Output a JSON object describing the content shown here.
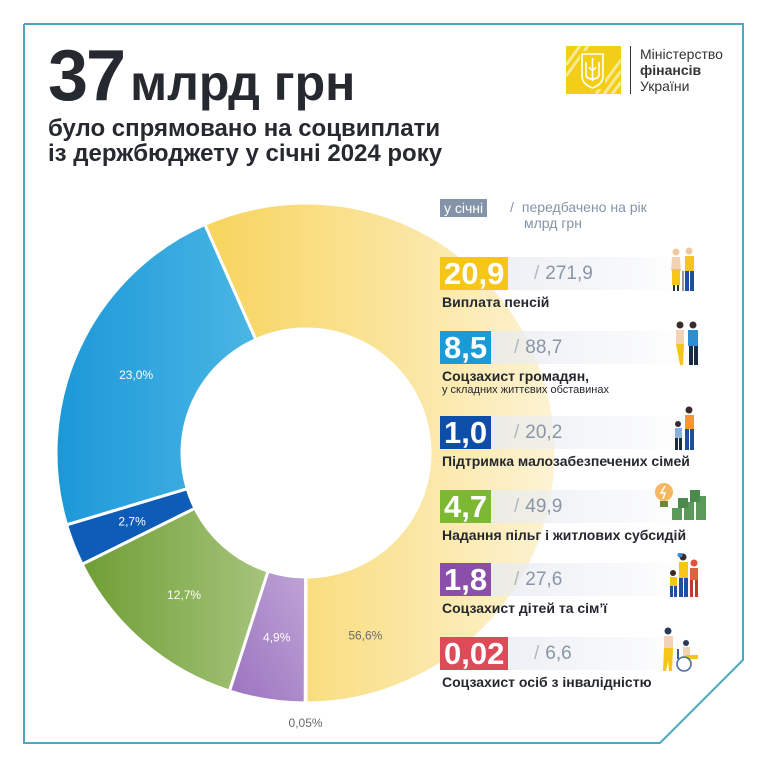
{
  "header": {
    "amount": "37",
    "unit": "млрд грн",
    "subtitle_line1": "було спрямовано на соцвиплати",
    "subtitle_line2": "із держбюджету у січні 2024 року"
  },
  "logo": {
    "line1": "Міністерство",
    "line2": "фінансів",
    "line3": "України",
    "icon": "trident-coat-of-arms-icon",
    "color": "#f2cf16"
  },
  "legend_header": {
    "badge": "у січні",
    "slash": "/",
    "planned_line1": "передбачено на рік",
    "planned_line2": "млрд грн"
  },
  "frame_color": "#4aa8c0",
  "categories": [
    {
      "value": "20,9",
      "planned": "271,9",
      "label": "Виплата пенсій",
      "sublabel": "",
      "color": "#f5c518",
      "icon": "elderly-couple-icon"
    },
    {
      "value": "8,5",
      "planned": "88,7",
      "label": "Соцзахист громадян,",
      "sublabel": "у складних життєвих обставинах",
      "color": "#1a9ad6",
      "icon": "couple-standing-icon"
    },
    {
      "value": "1,0",
      "planned": "20,2",
      "label": "Підтримка малозабезпечених сімей",
      "sublabel": "",
      "color": "#0d4fa8",
      "icon": "mother-child-icon"
    },
    {
      "value": "4,7",
      "planned": "49,9",
      "label": "Надання пільг і житлових субсидій",
      "sublabel": "",
      "color": "#7cb832",
      "icon": "lightbulb-money-icon"
    },
    {
      "value": "1,8",
      "planned": "27,6",
      "label": "Соцзахист дітей та сім’ї",
      "sublabel": "",
      "color": "#8a4fab",
      "icon": "family-icon"
    },
    {
      "value": "0,02",
      "planned": "6,6",
      "label": "Соцзахист осіб з інвалідністю",
      "sublabel": "",
      "color": "#de4a58",
      "icon": "wheelchair-icon"
    }
  ],
  "chart_data": {
    "type": "pie",
    "donut": true,
    "title": "37 млрд грн",
    "start": "bottom",
    "direction": "clockwise",
    "slices": [
      {
        "name": "Соцзахист осіб з інвалідністю",
        "value": 0.05,
        "label": "0,05%",
        "color": "#ee8a92",
        "label_outside": true
      },
      {
        "name": "Соцзахист дітей та сім’ї",
        "value": 4.9,
        "label": "4,9%",
        "color": "#a884c4"
      },
      {
        "name": "Надання пільг і житлових субсидій",
        "value": 12.7,
        "label": "12,7%",
        "color": "#7ea848"
      },
      {
        "name": "Підтримка малозабезпечених сімей",
        "value": 2.7,
        "label": "2,7%",
        "color": "#0d5cb8"
      },
      {
        "name": "Соцзахист громадян, у складних життєвих обставинах",
        "value": 23.0,
        "label": "23,0%",
        "color": "#2aa2dc"
      },
      {
        "name": "Виплата пенсій",
        "value": 56.6,
        "label": "56,6%",
        "color": "#f7d668"
      }
    ]
  }
}
